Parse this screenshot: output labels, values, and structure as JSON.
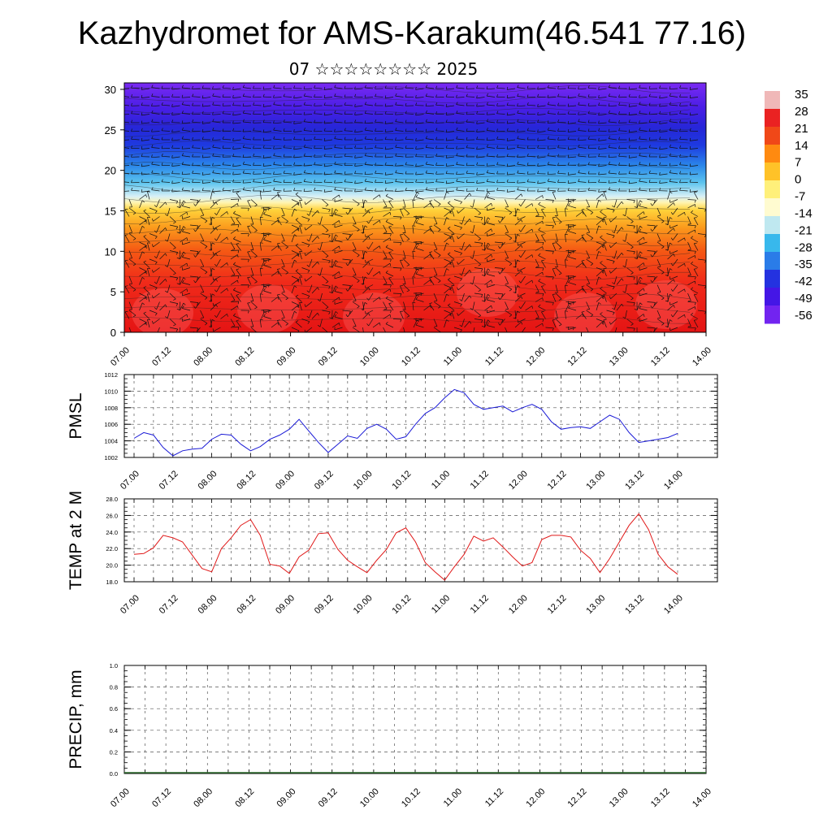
{
  "title": "Kazhydromet for AMS-Karakum(46.541 77.16)",
  "subtitle": "07 ☆☆☆☆☆☆☆☆ 2025",
  "colorbar": {
    "labels": [
      "35",
      "28",
      "21",
      "14",
      "7",
      "0",
      "-7",
      "-14",
      "-21",
      "-28",
      "-35",
      "-42",
      "-49",
      "-56"
    ],
    "colors": [
      "#f0b8b8",
      "#ea2222",
      "#f04818",
      "#ff8a10",
      "#ffc228",
      "#fff07a",
      "#fffbd0",
      "#bfe8f0",
      "#38b8ec",
      "#2a7ce8",
      "#2432e0",
      "#4416e6",
      "#7224f0"
    ]
  },
  "chart_data": [
    {
      "type": "heatmap",
      "name": "profile",
      "xticks": [
        "07.00",
        "07.12",
        "08.00",
        "08.12",
        "09.00",
        "09.12",
        "10.00",
        "10.12",
        "11.00",
        "11.12",
        "12.00",
        "12.12",
        "13.00",
        "13.12",
        "14.00"
      ],
      "yticks": [
        "0",
        "5",
        "10",
        "15",
        "20",
        "25",
        "30"
      ],
      "ylim": [
        0,
        30.8
      ],
      "z_note_levels": [
        35,
        28,
        21,
        14,
        7,
        0,
        -7,
        -14,
        -21,
        -28,
        -35,
        -42,
        -49,
        -56
      ],
      "wind_barbs": true
    },
    {
      "type": "line",
      "ylabel": "PMSL",
      "color": "#1a1ad6",
      "ylim": [
        1002,
        1012
      ],
      "yticks": [
        "1002",
        "1004",
        "1006",
        "1008",
        "1010",
        "1012"
      ],
      "xticks": [
        "07.00",
        "07.12",
        "08.00",
        "08.12",
        "09.00",
        "09.12",
        "10.00",
        "10.12",
        "11.00",
        "11.12",
        "12.00",
        "12.12",
        "13.00",
        "13.12",
        "14.00"
      ],
      "values": [
        1004.3,
        1005.0,
        1004.7,
        1003.2,
        1002.2,
        1002.8,
        1003.0,
        1003.1,
        1004.2,
        1004.8,
        1004.7,
        1003.6,
        1002.8,
        1003.3,
        1004.2,
        1004.7,
        1005.4,
        1006.6,
        1005.2,
        1003.8,
        1002.6,
        1003.6,
        1004.6,
        1004.3,
        1005.5,
        1006.0,
        1005.4,
        1004.2,
        1004.5,
        1006.0,
        1007.3,
        1008.0,
        1009.2,
        1010.2,
        1009.8,
        1008.4,
        1007.8,
        1008.0,
        1008.2,
        1007.5,
        1008.0,
        1008.4,
        1007.8,
        1006.3,
        1005.4,
        1005.6,
        1005.7,
        1005.5,
        1006.3,
        1007.1,
        1006.6,
        1005.0,
        1003.8,
        1004.0,
        1004.2,
        1004.4,
        1004.9
      ]
    },
    {
      "type": "line",
      "ylabel": "TEMP at 2 M",
      "color": "#e01818",
      "ylim": [
        18,
        28
      ],
      "yticks": [
        "18.0",
        "20.0",
        "22.0",
        "24.0",
        "26.0",
        "28.0"
      ],
      "xticks": [
        "07.00",
        "07.12",
        "08.00",
        "08.12",
        "09.00",
        "09.12",
        "10.00",
        "10.12",
        "11.00",
        "11.12",
        "12.00",
        "12.12",
        "13.00",
        "13.12",
        "14.00"
      ],
      "values": [
        21.3,
        21.4,
        22.1,
        23.6,
        23.3,
        22.8,
        21.2,
        19.6,
        19.2,
        22.0,
        23.3,
        24.8,
        25.5,
        23.6,
        20.1,
        19.9,
        19.0,
        21.0,
        21.8,
        23.8,
        23.9,
        21.9,
        20.6,
        19.8,
        19.1,
        20.6,
        21.9,
        23.9,
        24.5,
        22.8,
        20.3,
        19.2,
        18.2,
        19.8,
        21.3,
        23.5,
        22.9,
        23.3,
        22.2,
        21.0,
        19.9,
        20.3,
        23.1,
        23.6,
        23.6,
        23.4,
        21.8,
        20.8,
        19.1,
        20.8,
        22.8,
        24.8,
        26.2,
        24.3,
        21.3,
        19.8,
        18.9
      ]
    },
    {
      "type": "line",
      "ylabel": "PRECIP, mm",
      "color": "#2a6a2a",
      "ylim": [
        0,
        1
      ],
      "yticks": [
        "0.0",
        "0.2",
        "0.4",
        "0.6",
        "0.8",
        "1.0"
      ],
      "xticks": [
        "07.00",
        "07.12",
        "08.00",
        "08.12",
        "09.00",
        "09.12",
        "10.00",
        "10.12",
        "11.00",
        "11.12",
        "12.00",
        "12.12",
        "13.00",
        "13.12",
        "14.00"
      ],
      "values": [
        0,
        0,
        0,
        0,
        0,
        0,
        0,
        0,
        0,
        0,
        0,
        0,
        0,
        0,
        0,
        0,
        0,
        0,
        0,
        0,
        0,
        0,
        0,
        0,
        0,
        0,
        0,
        0,
        0,
        0,
        0,
        0,
        0,
        0,
        0,
        0,
        0,
        0,
        0,
        0,
        0,
        0,
        0,
        0,
        0,
        0,
        0,
        0,
        0,
        0,
        0,
        0,
        0,
        0,
        0,
        0,
        0
      ]
    }
  ]
}
